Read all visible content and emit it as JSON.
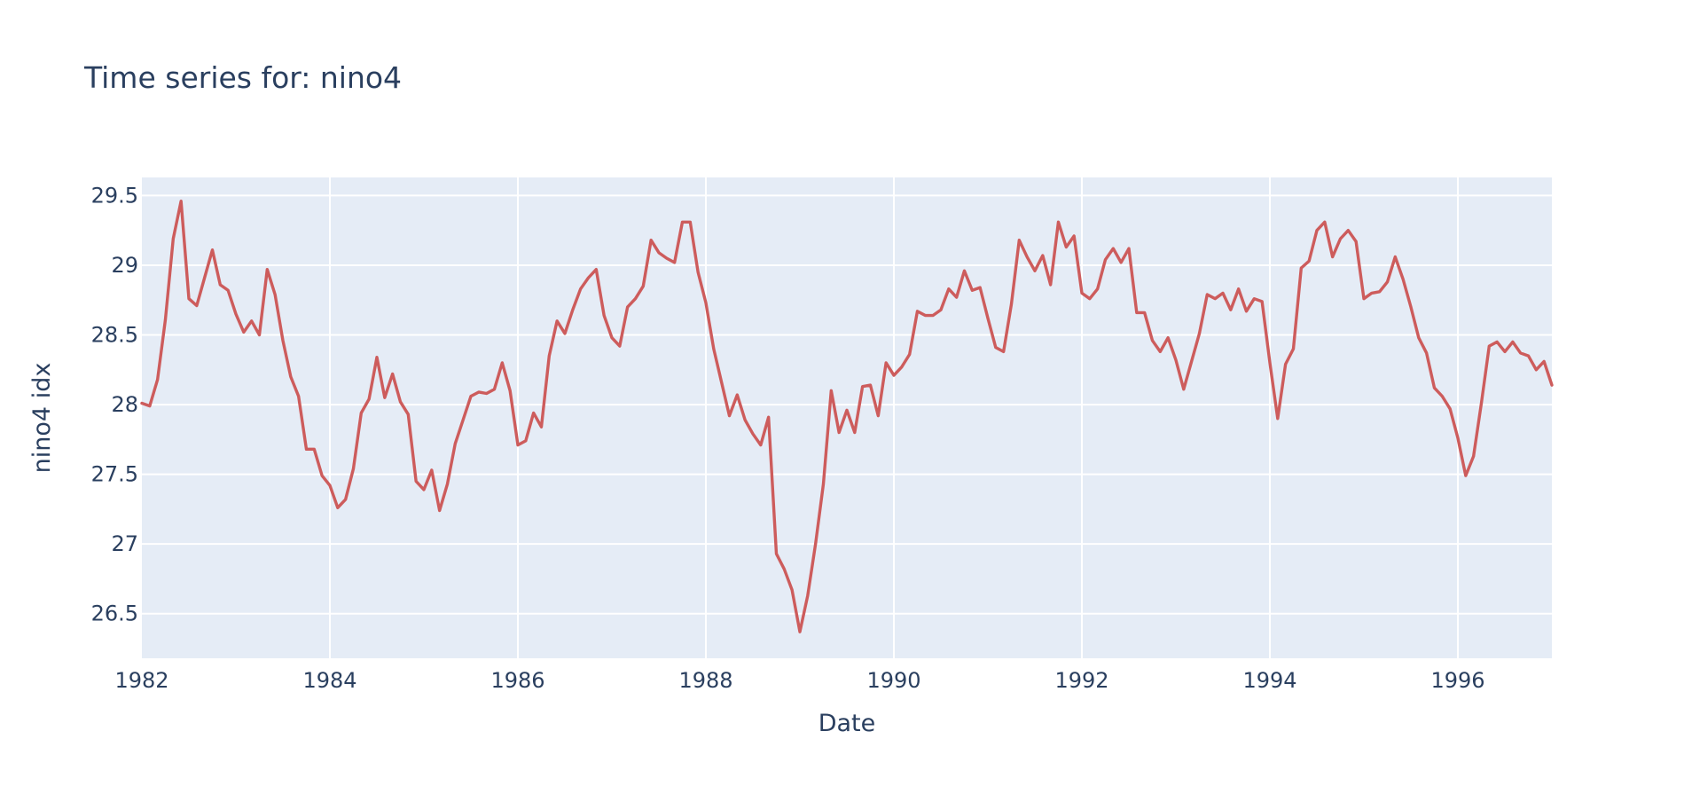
{
  "colors": {
    "background": "#ffffff",
    "plot_background": "#e5ecf6",
    "grid": "#ffffff",
    "text": "#2a3f5f",
    "line": "#cd5c5c"
  },
  "chart_data": {
    "type": "line",
    "title": "Time series for: nino4",
    "xlabel": "Date",
    "ylabel": "nino4 idx",
    "xlim": [
      "1982-01",
      "1997-01"
    ],
    "ylim": [
      26.18,
      29.63
    ],
    "grid": true,
    "x_ticks": [
      {
        "value": 1982,
        "label": "1982"
      },
      {
        "value": 1984,
        "label": "1984"
      },
      {
        "value": 1986,
        "label": "1986"
      },
      {
        "value": 1988,
        "label": "1988"
      },
      {
        "value": 1990,
        "label": "1990"
      },
      {
        "value": 1992,
        "label": "1992"
      },
      {
        "value": 1994,
        "label": "1994"
      },
      {
        "value": 1996,
        "label": "1996"
      }
    ],
    "y_ticks": [
      {
        "value": 26.5,
        "label": "26.5"
      },
      {
        "value": 27,
        "label": "27"
      },
      {
        "value": 27.5,
        "label": "27.5"
      },
      {
        "value": 28,
        "label": "28"
      },
      {
        "value": 28.5,
        "label": "28.5"
      },
      {
        "value": 29,
        "label": "29"
      },
      {
        "value": 29.5,
        "label": "29.5"
      }
    ],
    "series": [
      {
        "start": "1982-01",
        "frequency": "monthly",
        "values": [
          28.01,
          27.99,
          28.18,
          28.61,
          29.19,
          29.46,
          28.76,
          28.71,
          28.91,
          29.11,
          28.86,
          28.82,
          28.65,
          28.52,
          28.6,
          28.5,
          28.97,
          28.79,
          28.46,
          28.2,
          28.06,
          27.68,
          27.68,
          27.49,
          27.42,
          27.26,
          27.32,
          27.54,
          27.94,
          28.04,
          28.34,
          28.05,
          28.22,
          28.02,
          27.93,
          27.45,
          27.39,
          27.53,
          27.24,
          27.43,
          27.72,
          27.89,
          28.06,
          28.09,
          28.08,
          28.11,
          28.3,
          28.1,
          27.71,
          27.74,
          27.94,
          27.84,
          28.35,
          28.6,
          28.51,
          28.68,
          28.83,
          28.91,
          28.97,
          28.64,
          28.48,
          28.42,
          28.7,
          28.76,
          28.85,
          29.18,
          29.09,
          29.05,
          29.02,
          29.31,
          29.31,
          28.95,
          28.73,
          28.4,
          28.16,
          27.92,
          28.07,
          27.89,
          27.79,
          27.71,
          27.91,
          26.93,
          26.82,
          26.67,
          26.37,
          26.63,
          27.0,
          27.43,
          28.1,
          27.8,
          27.96,
          27.8,
          28.13,
          28.14,
          27.92,
          28.3,
          28.21,
          28.27,
          28.36,
          28.67,
          28.64,
          28.64,
          28.68,
          28.83,
          28.77,
          28.96,
          28.82,
          28.84,
          28.62,
          28.41,
          28.38,
          28.72,
          29.18,
          29.06,
          28.96,
          29.07,
          28.86,
          29.31,
          29.13,
          29.21,
          28.8,
          28.76,
          28.83,
          29.04,
          29.12,
          29.02,
          29.12,
          28.66,
          28.66,
          28.46,
          28.38,
          28.48,
          28.32,
          28.11,
          28.31,
          28.51,
          28.79,
          28.76,
          28.8,
          28.68,
          28.83,
          28.67,
          28.76,
          28.74,
          28.3,
          27.9,
          28.29,
          28.4,
          28.98,
          29.03,
          29.25,
          29.31,
          29.06,
          29.19,
          29.25,
          29.17,
          28.76,
          28.8,
          28.81,
          28.88,
          29.06,
          28.9,
          28.7,
          28.48,
          28.37,
          28.12,
          28.06,
          27.97,
          27.76,
          27.49,
          27.63,
          28.01,
          28.42,
          28.45,
          28.38,
          28.45,
          28.37,
          28.35,
          28.25,
          28.31,
          28.14
        ]
      }
    ]
  }
}
